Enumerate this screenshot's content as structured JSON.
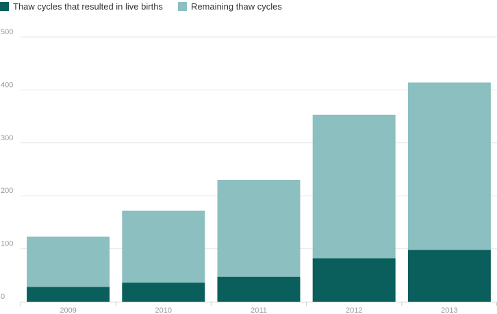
{
  "chart_data": {
    "type": "bar",
    "stacked": true,
    "categories": [
      "2009",
      "2010",
      "2011",
      "2012",
      "2013"
    ],
    "series": [
      {
        "name": "Thaw cycles that resulted in live births",
        "color": "#0a5e5c",
        "values": [
          28,
          36,
          47,
          82,
          98
        ]
      },
      {
        "name": "Remaining thaw cycles",
        "color": "#8bbfc0",
        "values": [
          95,
          136,
          183,
          271,
          316
        ]
      }
    ],
    "y_ticks": [
      "0",
      "100",
      "200",
      "300",
      "400",
      "500"
    ],
    "ylim": [
      0,
      500
    ],
    "grid": true,
    "legend_position": "top-left"
  }
}
